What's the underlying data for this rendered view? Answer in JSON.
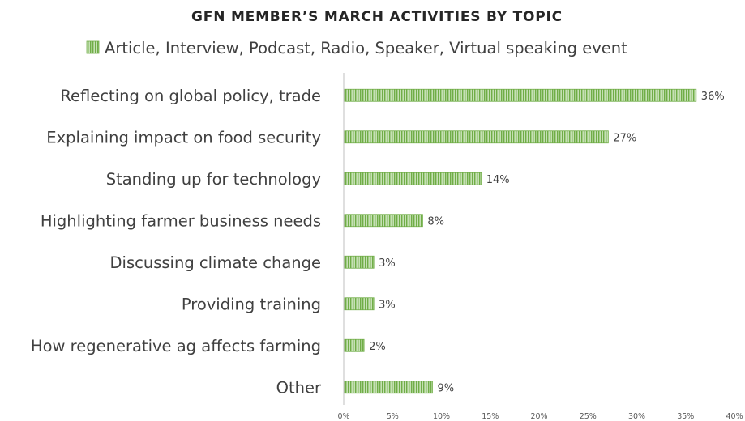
{
  "chart_data": {
    "type": "bar",
    "orientation": "horizontal",
    "title": "GFN MEMBER’S MARCH ACTIVITIES BY TOPIC",
    "legend": {
      "position": "top",
      "entries": [
        "Article, Interview, Podcast, Radio, Speaker, Virtual speaking event"
      ]
    },
    "categories": [
      "Reflecting on global policy, trade",
      "Explaining impact on food security",
      "Standing up for technology",
      "Highlighting farmer business needs",
      "Discussing climate change",
      "Providing training",
      "How regenerative ag affects farming",
      "Other"
    ],
    "series": [
      {
        "name": "Article, Interview, Podcast, Radio, Speaker, Virtual speaking event",
        "values": [
          36,
          27,
          14,
          8,
          3,
          3,
          2,
          9
        ],
        "labels": [
          "36%",
          "27%",
          "14%",
          "8%",
          "3%",
          "3%",
          "2%",
          "9%"
        ]
      }
    ],
    "xlim": [
      0,
      40
    ],
    "xticks": [
      "0%",
      "5%",
      "10%",
      "15%",
      "20%",
      "25%",
      "30%",
      "35%",
      "40%"
    ],
    "grid": false,
    "colors": {
      "bar_fill": "#a8d08d",
      "bar_stripe": "#70ad47",
      "text": "#404040",
      "axis": "#bfbfbf"
    }
  }
}
